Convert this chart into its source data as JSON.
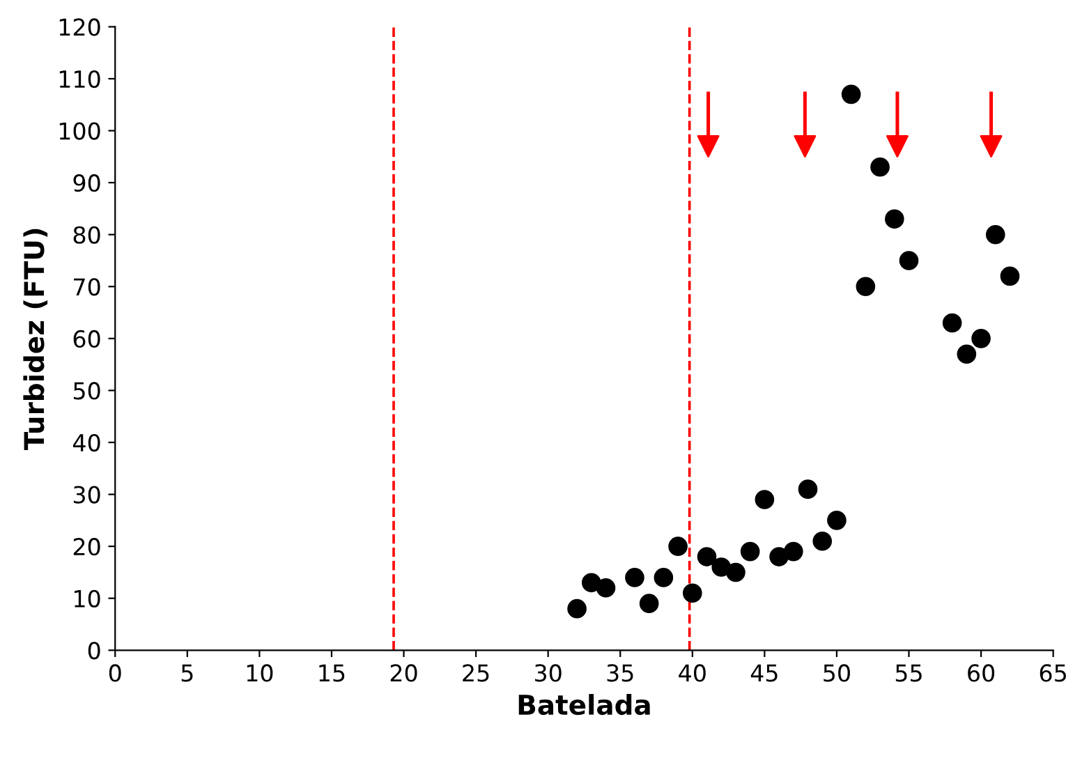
{
  "chart_data": {
    "type": "scatter",
    "xlabel": "Batelada",
    "ylabel": "Turbidez (FTU)",
    "x": [
      32,
      33,
      34,
      36,
      37,
      38,
      39,
      40,
      41,
      42,
      43,
      44,
      45,
      46,
      47,
      48,
      49,
      50,
      51,
      52,
      53,
      54,
      55,
      58,
      59,
      60,
      61,
      62
    ],
    "series": [
      {
        "color": "#000000",
        "values": [
          8,
          13,
          12,
          14,
          9,
          14,
          20,
          11,
          18,
          16,
          15,
          19,
          29,
          18,
          19,
          31,
          21,
          25,
          107,
          70,
          93,
          83,
          75,
          63,
          57,
          60,
          80,
          72
        ]
      },
      {
        "type": "scatter",
        "marker": "triangle",
        "color": "#ff0000",
        "x": [
          41.1,
          47.8,
          54.2,
          60.7
        ],
        "values": [
          97,
          97,
          97,
          97
        ]
      }
    ],
    "marker": "circle",
    "grid": false,
    "legend": false,
    "xlim": [
      0,
      65
    ],
    "xticks": [
      0,
      5,
      10,
      15,
      20,
      25,
      30,
      35,
      40,
      45,
      50,
      55,
      60,
      65
    ],
    "ylim": [
      0,
      120
    ],
    "yticks": [
      0,
      10,
      20,
      30,
      40,
      50,
      60,
      70,
      80,
      90,
      100,
      110,
      120
    ],
    "ref_lines": [
      {
        "axis": "x",
        "value": 19.3,
        "color": "#ff0000",
        "line_style": "dashed"
      },
      {
        "axis": "x",
        "value": 39.8,
        "color": "#ff0000",
        "line_style": "dashed"
      }
    ]
  }
}
